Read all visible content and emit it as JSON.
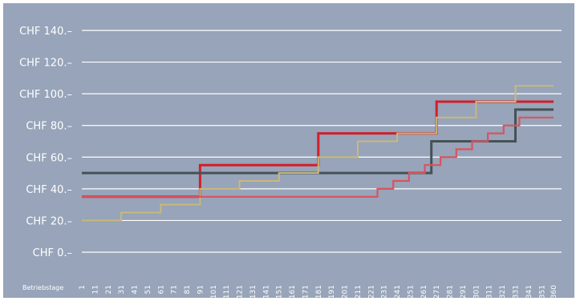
{
  "chart_data": {
    "type": "line",
    "step": true,
    "title": "",
    "xlabel": "Betriebstage",
    "ylabel": "",
    "xlim": [
      1,
      360
    ],
    "ylim": [
      0,
      140
    ],
    "grid": true,
    "background": "#97a4b9",
    "y_ticks": [
      0,
      20,
      40,
      60,
      80,
      100,
      120,
      140
    ],
    "y_tick_labels": [
      "CHF 0.–",
      "CHF 20.–",
      "CHF 40.–",
      "CHF 60.–",
      "CHF 80.–",
      "CHF 100.–",
      "CHF 120.–",
      "CHF 140.–"
    ],
    "x_ticks": [
      1,
      11,
      21,
      31,
      41,
      51,
      61,
      71,
      81,
      91,
      101,
      111,
      121,
      131,
      141,
      151,
      161,
      171,
      181,
      191,
      201,
      211,
      221,
      231,
      241,
      251,
      261,
      271,
      281,
      291,
      301,
      311,
      321,
      331,
      341,
      351,
      360
    ],
    "x_tick_labels": [
      "1",
      "11",
      "21",
      "31",
      "41",
      "51",
      "61",
      "71",
      "81",
      "91",
      "101",
      "111",
      "121",
      "131",
      "141",
      "151",
      "161",
      "171",
      "181",
      "191",
      "201",
      "211",
      "221",
      "231",
      "241",
      "251",
      "261",
      "271",
      "281",
      "291",
      "301",
      "311",
      "321",
      "331",
      "341",
      "351",
      "360"
    ],
    "series": [
      {
        "color": "#d21e2a",
        "x": [
          1,
          91,
          91,
          181,
          181,
          271,
          271,
          360
        ],
        "y": [
          35,
          35,
          55,
          55,
          75,
          75,
          95,
          95
        ]
      },
      {
        "color": "#455256",
        "x": [
          1,
          267,
          267,
          331,
          331,
          360
        ],
        "y": [
          50,
          50,
          70,
          70,
          90,
          90
        ]
      },
      {
        "color": "#c9b87a",
        "x": [
          1,
          31,
          31,
          61,
          61,
          91,
          91,
          121,
          121,
          151,
          151,
          181,
          181,
          211,
          211,
          241,
          241,
          271,
          271,
          301,
          301,
          331,
          331,
          360
        ],
        "y": [
          20,
          20,
          25,
          25,
          30,
          30,
          40,
          40,
          45,
          45,
          50,
          50,
          60,
          60,
          70,
          70,
          75,
          75,
          85,
          85,
          95,
          95,
          105,
          105
        ]
      },
      {
        "color": "#d9535f",
        "x": [
          1,
          202,
          202,
          226,
          226,
          238,
          238,
          250,
          250,
          262,
          262,
          274,
          274,
          286,
          286,
          298,
          298,
          310,
          310,
          322,
          322,
          334,
          334,
          346,
          346,
          360
        ],
        "y": [
          35,
          35,
          35,
          35,
          40,
          40,
          45,
          45,
          50,
          50,
          55,
          55,
          60,
          60,
          65,
          65,
          70,
          70,
          75,
          75,
          80,
          80,
          85,
          85,
          85,
          85
        ]
      }
    ]
  }
}
